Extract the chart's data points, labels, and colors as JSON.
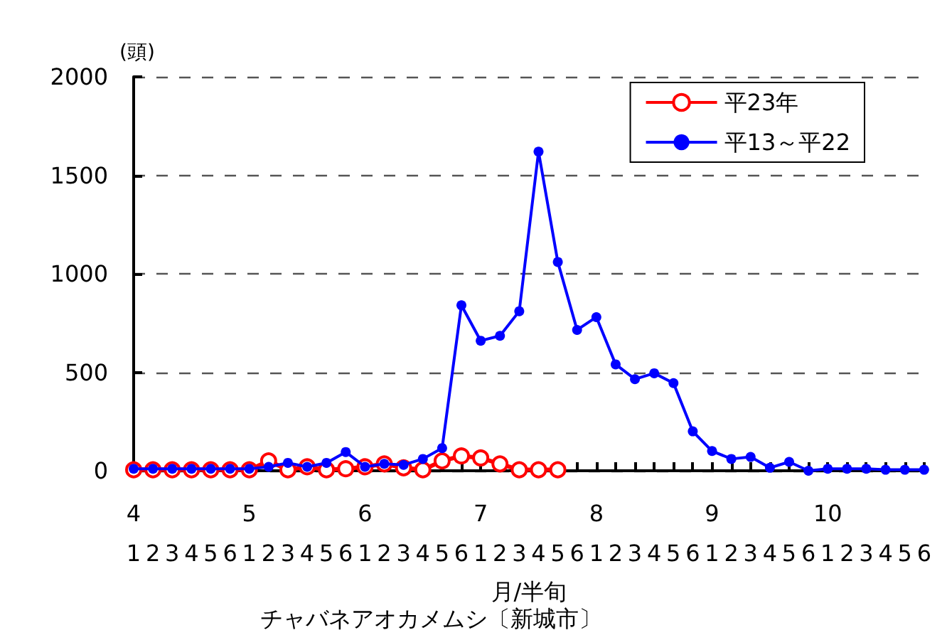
{
  "chart_data": {
    "type": "line",
    "title": "チャバネアオカメムシ〔新城市〕",
    "xlabel": "月/半旬",
    "ylabel": "(頭)",
    "categories": [
      "4\n1",
      "2",
      "3",
      "4",
      "5",
      "6",
      "5\n1",
      "2",
      "3",
      "4",
      "5",
      "6",
      "6\n1",
      "2",
      "3",
      "4",
      "5",
      "6",
      "7\n1",
      "2",
      "3",
      "4",
      "5",
      "6",
      "8\n1",
      "2",
      "3",
      "4",
      "5",
      "6",
      "9\n1",
      "2",
      "3",
      "4",
      "5",
      "6",
      "10\n1",
      "2",
      "3",
      "4",
      "5",
      "6"
    ],
    "series": [
      {
        "name": "平23年",
        "color": "#ff0000",
        "marker": "circle",
        "values": [
          5,
          5,
          5,
          5,
          5,
          5,
          5,
          50,
          5,
          20,
          5,
          10,
          20,
          35,
          15,
          5,
          50,
          75,
          65,
          35,
          5,
          5,
          5,
          null,
          null,
          null,
          null,
          null,
          null,
          null,
          null,
          null,
          null,
          null,
          null,
          null,
          null,
          null,
          null,
          null,
          null,
          null
        ]
      },
      {
        "name": "平13～平22",
        "color": "#0000ff",
        "marker": "circle",
        "values": [
          10,
          10,
          10,
          10,
          10,
          10,
          10,
          20,
          40,
          20,
          40,
          95,
          20,
          35,
          30,
          60,
          115,
          840,
          660,
          685,
          810,
          1620,
          1060,
          715,
          780,
          540,
          465,
          495,
          445,
          200,
          100,
          60,
          70,
          15,
          45,
          0,
          10,
          10,
          10,
          5,
          5,
          5
        ]
      }
    ],
    "ylim": [
      0,
      2000
    ],
    "yticks": [
      0,
      500,
      1000,
      1500,
      2000
    ],
    "grid": "y",
    "line_style": "solid",
    "legend": "top right"
  }
}
